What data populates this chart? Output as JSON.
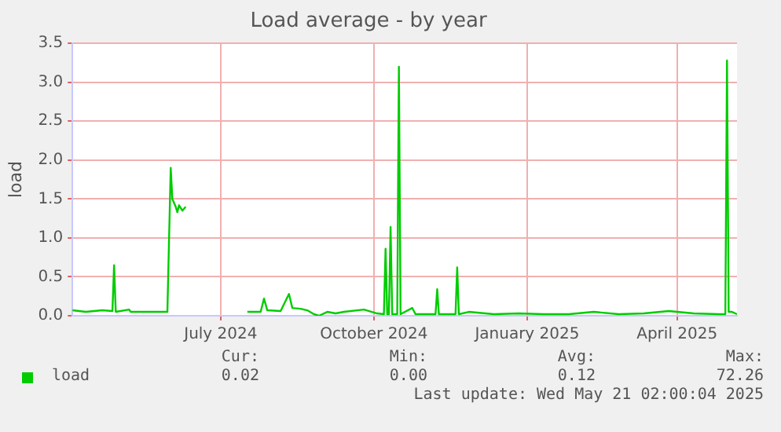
{
  "chart_data": {
    "type": "line",
    "title": "Load average - by year",
    "ylabel": "load",
    "x": [
      "2024-04-17",
      "2024-04-25",
      "2024-05-05",
      "2024-05-11",
      "2024-05-12",
      "2024-05-13",
      "2024-05-21",
      "2024-05-22",
      "2024-06-13",
      "2024-06-15",
      "2024-06-16",
      "2024-06-18",
      "2024-06-19",
      "2024-06-20",
      "2024-06-22",
      "2024-06-24",
      "2024-07-15",
      "2024-07-31",
      "2024-08-08",
      "2024-08-10",
      "2024-08-12",
      "2024-08-20",
      "2024-08-25",
      "2024-08-27",
      "2024-09-01",
      "2024-09-05",
      "2024-09-09",
      "2024-09-12",
      "2024-09-17",
      "2024-09-22",
      "2024-09-27",
      "2024-10-09",
      "2024-10-17",
      "2024-10-21",
      "2024-10-22",
      "2024-10-23",
      "2024-10-24",
      "2024-10-25",
      "2024-10-26",
      "2024-10-29",
      "2024-10-30",
      "2024-10-31",
      "2024-11-07",
      "2024-11-09",
      "2024-11-21",
      "2024-11-22",
      "2024-11-23",
      "2024-12-03",
      "2024-12-04",
      "2024-12-05",
      "2024-12-11",
      "2024-12-26",
      "2025-01-10",
      "2025-01-25",
      "2025-02-09",
      "2025-02-24",
      "2025-03-11",
      "2025-03-26",
      "2025-04-10",
      "2025-04-25",
      "2025-05-10",
      "2025-05-14",
      "2025-05-15",
      "2025-05-16",
      "2025-05-18",
      "2025-05-21"
    ],
    "series": [
      {
        "name": "load",
        "color": "#00cc00",
        "values": [
          0.07,
          0.05,
          0.07,
          0.06,
          0.65,
          0.05,
          0.08,
          0.05,
          0.05,
          1.9,
          1.5,
          1.4,
          1.33,
          1.42,
          1.35,
          1.4,
          null,
          0.05,
          0.05,
          0.22,
          0.07,
          0.06,
          0.28,
          0.1,
          0.09,
          0.07,
          0.02,
          0.0,
          0.05,
          0.03,
          0.05,
          0.08,
          0.03,
          0.02,
          0.86,
          0.02,
          0.02,
          1.14,
          0.02,
          0.02,
          3.2,
          0.02,
          0.1,
          0.02,
          0.02,
          0.34,
          0.02,
          0.02,
          0.62,
          0.02,
          0.05,
          0.02,
          0.03,
          0.02,
          0.02,
          0.05,
          0.02,
          0.03,
          0.06,
          0.03,
          0.02,
          0.02,
          3.28,
          0.05,
          0.05,
          0.02
        ]
      }
    ],
    "ylim": [
      0,
      3.5
    ],
    "yticks": [
      {
        "value": 0,
        "label": "0.0"
      },
      0.5,
      {
        "value": 1,
        "label": "1.0"
      },
      1.5,
      {
        "value": 2,
        "label": "2.0"
      },
      2.5,
      {
        "value": 3,
        "label": "3.0"
      },
      3.5
    ],
    "xlim": [
      "2024-04-17",
      "2025-05-21"
    ],
    "xticks": [
      {
        "value": "2024-07-15",
        "label": "July 2024"
      },
      {
        "value": "2024-10-15",
        "label": "October 2024"
      },
      {
        "value": "2025-01-15",
        "label": "January 2025"
      },
      {
        "value": "2025-04-15",
        "label": "April 2025"
      }
    ],
    "grid": true,
    "legend": "bottom left",
    "marker": "none",
    "line_style": "solid",
    "annotations": [
      "Cur:",
      "Min:",
      "Avg:",
      "Max:",
      "0.02",
      "0.00",
      "0.12",
      "72.26",
      "Last update: Wed May 21 02:00:04 2025"
    ]
  }
}
